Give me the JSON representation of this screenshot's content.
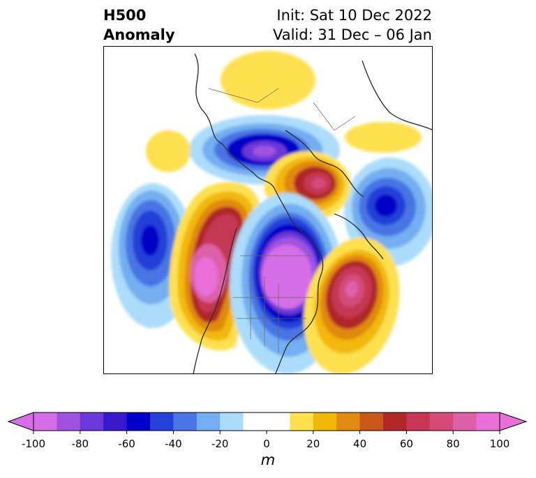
{
  "header": {
    "variable_line1": "H500",
    "variable_line2": "Anomaly",
    "init_text": "Init: Sat 10 Dec 2022",
    "valid_text": "Valid: 31 Dec – 06 Jan"
  },
  "colorbar": {
    "unit_label": "m",
    "ticks": [
      "-100",
      "-80",
      "-60",
      "-40",
      "-20",
      "0",
      "20",
      "40",
      "60",
      "80",
      "100"
    ],
    "min": -100,
    "max": 100,
    "extend": "both",
    "colors": [
      "#d66ee8",
      "#9f52e0",
      "#6a37d8",
      "#3a18cc",
      "#0000c8",
      "#2340d8",
      "#4a74e4",
      "#74aef0",
      "#acdcfc",
      "#ffffff",
      "#ffffff",
      "#ffe050",
      "#f2b807",
      "#e08a10",
      "#c85818",
      "#b02828",
      "#c53752",
      "#d44b7a",
      "#de60ab",
      "#e870d8"
    ]
  },
  "map": {
    "projection": "polar-stereographic",
    "region": "North America / North Pacific",
    "features": [
      "coastlines",
      "country borders",
      "state/province borders"
    ]
  }
}
